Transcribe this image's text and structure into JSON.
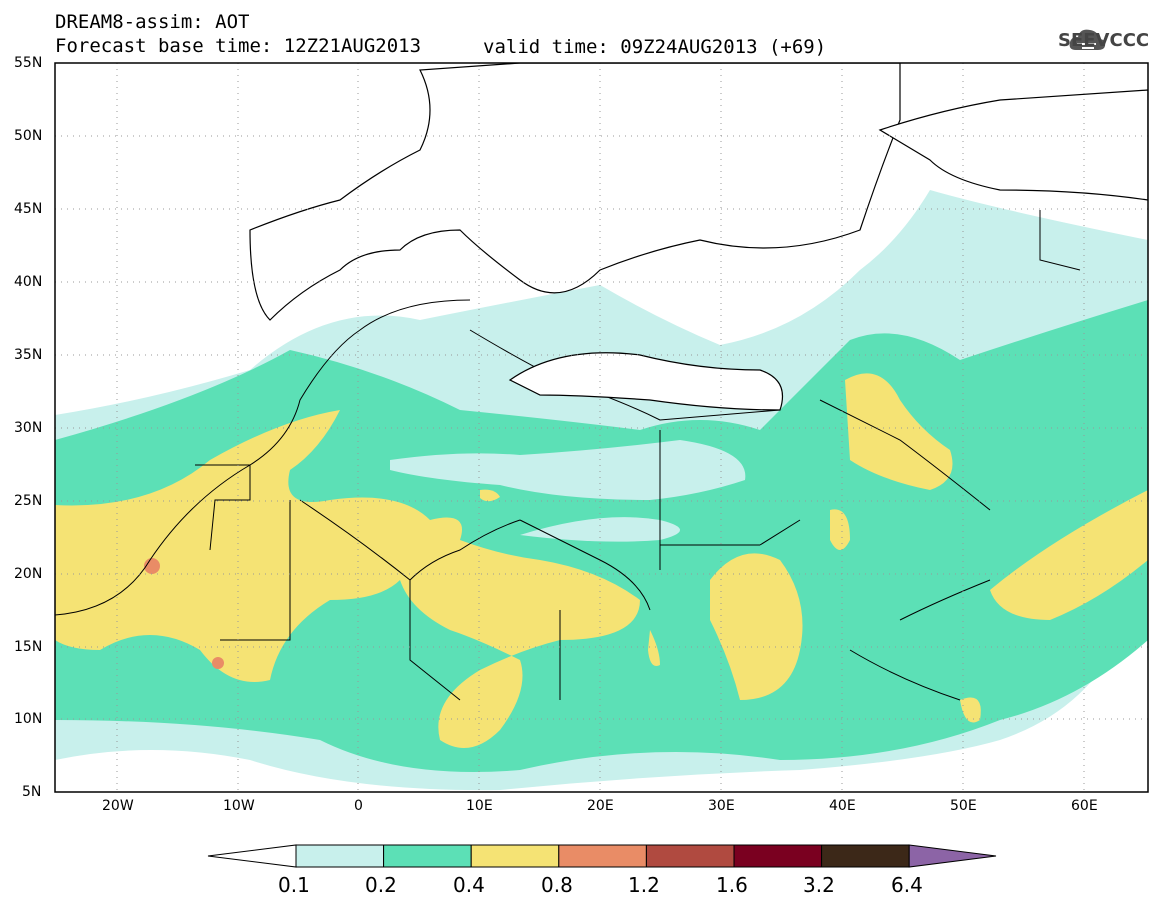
{
  "header": {
    "line1": "DREAM8-assim: AOT",
    "line2": "Forecast base time: 12Z21AUG2013",
    "valid": "valid time: 09Z24AUG2013 (+69)"
  },
  "logo": {
    "text": "SEEVCCC",
    "icon": "cloud-logo-icon",
    "color": "#555555"
  },
  "axes": {
    "lat_labels": [
      "55N",
      "50N",
      "45N",
      "40N",
      "35N",
      "30N",
      "25N",
      "20N",
      "15N",
      "10N",
      "5N"
    ],
    "lon_labels": [
      "20W",
      "10W",
      "0",
      "10E",
      "20E",
      "30E",
      "40E",
      "50E",
      "60E"
    ]
  },
  "legend": {
    "thresholds": [
      "0.1",
      "0.2",
      "0.4",
      "0.8",
      "1.2",
      "1.6",
      "3.2",
      "6.4"
    ],
    "colors": [
      "#ffffff",
      "#c8f0ec",
      "#5ce0b6",
      "#f5e374",
      "#e98c66",
      "#b04a40",
      "#7a0020",
      "#3c2818",
      "#8c64a6"
    ]
  }
}
